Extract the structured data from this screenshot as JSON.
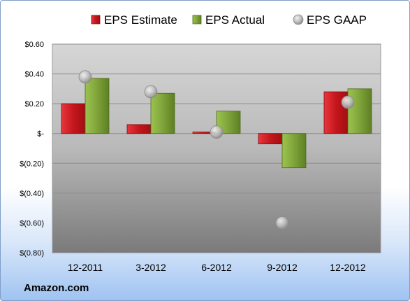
{
  "chart_data": {
    "type": "bar",
    "categories": [
      "12-2011",
      "3-2012",
      "6-2012",
      "9-2012",
      "12-2012"
    ],
    "series": [
      {
        "name": "EPS Estimate",
        "kind": "bar",
        "color": "#c4161c",
        "values": [
          0.2,
          0.06,
          0.01,
          -0.07,
          0.28
        ]
      },
      {
        "name": "EPS Actual",
        "kind": "bar",
        "color": "#7fa33a",
        "values": [
          0.37,
          0.27,
          0.15,
          -0.23,
          0.3
        ]
      },
      {
        "name": "EPS GAAP",
        "kind": "scatter",
        "color": "#b8b8b8",
        "values": [
          0.38,
          0.28,
          0.01,
          -0.6,
          0.21
        ]
      }
    ],
    "yticks": [
      "$0.60",
      "$0.40",
      "$0.20",
      "$-",
      "$(0.20)",
      "$(0.40)",
      "$(0.60)",
      "$(0.80)"
    ],
    "ylim": [
      -0.8,
      0.6
    ],
    "grid": true,
    "legend_position": "top"
  },
  "footer": {
    "source": "Amazon.com"
  }
}
